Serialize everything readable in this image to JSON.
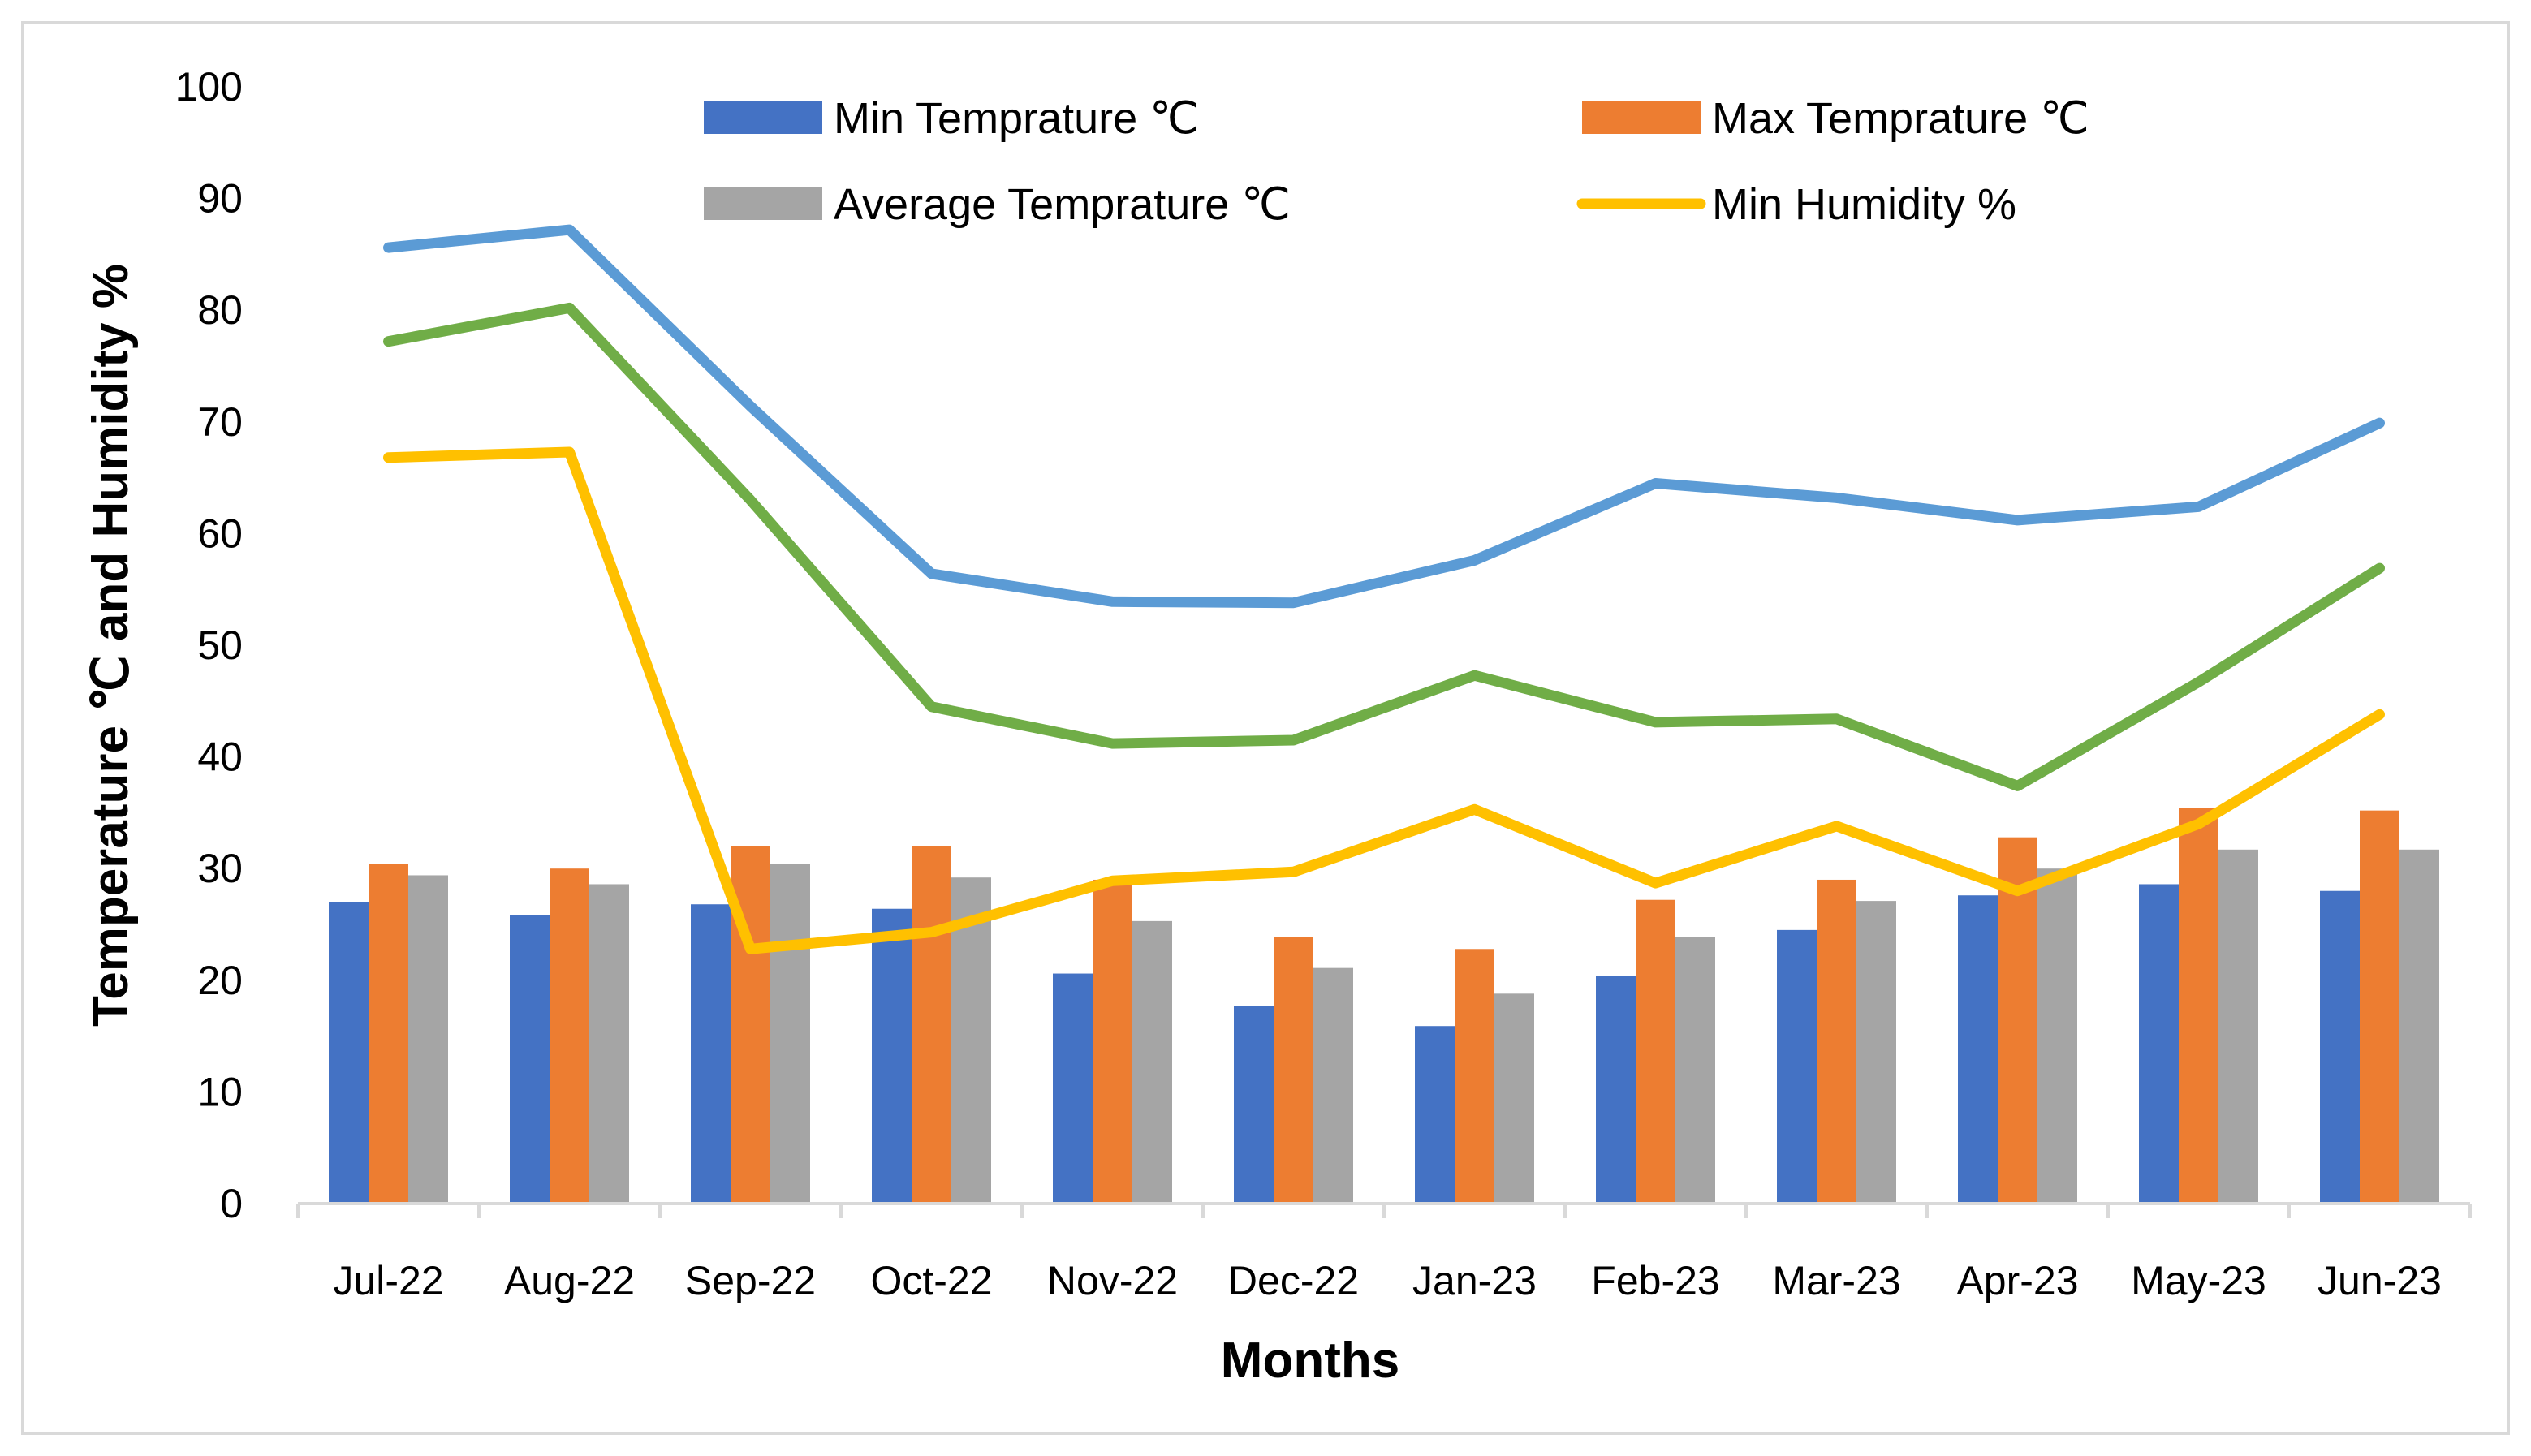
{
  "chart_data": {
    "type": "bar+line",
    "title": "",
    "xlabel": "Months",
    "ylabel": "Temperature ℃ and Humidity  %",
    "ylim": [
      0,
      100
    ],
    "yticks": [
      0,
      10,
      20,
      30,
      40,
      50,
      60,
      70,
      80,
      90,
      100
    ],
    "grid": false,
    "legend_position": "top",
    "categories": [
      "Jul-22",
      "Aug-22",
      "Sep-22",
      "Oct-22",
      "Nov-22",
      "Dec-22",
      "Jan-23",
      "Feb-23",
      "Mar-23",
      "Apr-23",
      "May-23",
      "Jun-23"
    ],
    "bar_series": [
      {
        "name": "Min Temprature ℃",
        "color": "#4472c4",
        "values": [
          27.0,
          25.8,
          26.8,
          26.4,
          20.6,
          17.7,
          15.9,
          20.4,
          24.5,
          27.6,
          28.6,
          28.0
        ]
      },
      {
        "name": "Max Temprature ℃",
        "color": "#ed7d31",
        "values": [
          30.4,
          30.0,
          32.0,
          32.0,
          29.0,
          23.9,
          22.8,
          27.2,
          29.0,
          32.8,
          35.4,
          35.2
        ]
      },
      {
        "name": "Average Temprature ℃",
        "color": "#a5a5a5",
        "values": [
          29.4,
          28.6,
          30.4,
          29.2,
          25.3,
          21.1,
          18.8,
          23.9,
          27.1,
          30.0,
          31.7,
          31.7
        ]
      }
    ],
    "line_series": [
      {
        "name": "Min Humidity %",
        "color": "#ffc000",
        "values": [
          66.8,
          67.3,
          22.8,
          24.3,
          28.9,
          29.7,
          35.3,
          28.7,
          33.8,
          28.0,
          34.0,
          43.8
        ],
        "in_legend": true
      },
      {
        "name": "",
        "color": "#5b9bd5",
        "values": [
          85.6,
          87.2,
          71.4,
          56.4,
          53.9,
          53.8,
          57.6,
          64.5,
          63.2,
          61.2,
          62.4,
          69.9
        ],
        "in_legend": false
      },
      {
        "name": "",
        "color": "#70ad47",
        "values": [
          77.2,
          80.2,
          63.0,
          44.5,
          41.2,
          41.5,
          47.3,
          43.1,
          43.4,
          37.4,
          46.7,
          56.9
        ],
        "in_legend": false
      }
    ],
    "legend": [
      {
        "label": "Min Temprature ℃",
        "kind": "bar",
        "color": "#4472c4"
      },
      {
        "label": "Max Temprature ℃",
        "kind": "bar",
        "color": "#ed7d31"
      },
      {
        "label": "Average Temprature ℃",
        "kind": "bar",
        "color": "#a5a5a5"
      },
      {
        "label": "Min Humidity %",
        "kind": "line",
        "color": "#ffc000"
      }
    ]
  }
}
